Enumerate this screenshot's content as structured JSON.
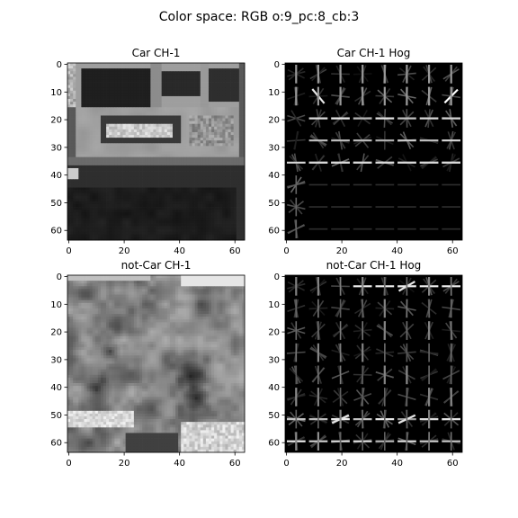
{
  "figure": {
    "suptitle": "Color space: RGB o:9_pc:8_cb:3"
  },
  "panels": [
    {
      "title": "Car CH-1",
      "kind": "image",
      "subject": "rear of a car: dark windows, bright license plate, bumper, dark road",
      "xticks": [
        "0",
        "20",
        "40",
        "60"
      ],
      "yticks": [
        "0",
        "10",
        "20",
        "30",
        "40",
        "50",
        "60"
      ]
    },
    {
      "title": "Car CH-1 Hog",
      "kind": "hog",
      "subject": "HOG gradient visualization on black, strong horizontal bars around rows 15-35",
      "xticks": [
        "0",
        "20",
        "40",
        "60"
      ],
      "yticks": [
        "0",
        "10",
        "20",
        "30",
        "40",
        "50",
        "60"
      ]
    },
    {
      "title": "not-Car CH-1",
      "kind": "image",
      "subject": "grey hillside / bushes texture with bright patches near bottom",
      "xticks": [
        "0",
        "20",
        "40",
        "60"
      ],
      "yticks": [
        "0",
        "10",
        "20",
        "30",
        "40",
        "50",
        "60"
      ]
    },
    {
      "title": "not-Car CH-1 Hog",
      "kind": "hog",
      "subject": "HOG gradient visualization on black, bright bars along top row and lower rows",
      "xticks": [
        "0",
        "20",
        "40",
        "60"
      ],
      "yticks": [
        "0",
        "10",
        "20",
        "30",
        "40",
        "50",
        "60"
      ]
    }
  ],
  "colors": {
    "background": "#ffffff",
    "axis": "#000000",
    "hog_background": "#000000"
  }
}
